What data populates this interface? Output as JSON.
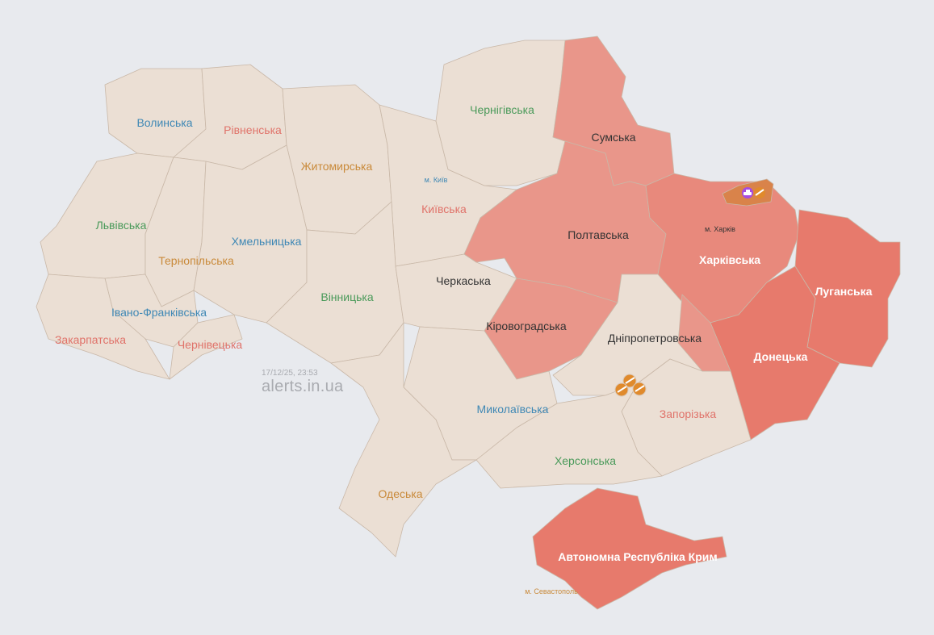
{
  "colors": {
    "background": "#e8eaee",
    "no_alert": "#ebdfd4",
    "alert_light": "#e9968a",
    "alert_medium": "#e8897c",
    "alert_strong": "#e77a6c",
    "threat_artillery": "#e08a2c",
    "threat_tank": "#a64ce0"
  },
  "regions": [
    {
      "name": "Волинська",
      "alert": false
    },
    {
      "name": "Рівненська",
      "alert": false
    },
    {
      "name": "Житомирська",
      "alert": false
    },
    {
      "name": "Київська",
      "alert": false
    },
    {
      "name": "Чернігівська",
      "alert": false
    },
    {
      "name": "Сумська",
      "alert": true
    },
    {
      "name": "Львівська",
      "alert": false
    },
    {
      "name": "Тернопільська",
      "alert": false
    },
    {
      "name": "Хмельницька",
      "alert": false
    },
    {
      "name": "Івано-Франківська",
      "alert": false
    },
    {
      "name": "Закарпатська",
      "alert": false
    },
    {
      "name": "Чернівецька",
      "alert": false
    },
    {
      "name": "Вінницька",
      "alert": false
    },
    {
      "name": "Черкаська",
      "alert": false
    },
    {
      "name": "Полтавська",
      "alert": true
    },
    {
      "name": "Харківська",
      "alert": true
    },
    {
      "name": "Луганська",
      "alert": true
    },
    {
      "name": "Донецька",
      "alert": true
    },
    {
      "name": "Кіровоградська",
      "alert": true
    },
    {
      "name": "Дніпропетровська",
      "alert": false
    },
    {
      "name": "Запорізька",
      "alert": false
    },
    {
      "name": "Херсонська",
      "alert": false
    },
    {
      "name": "Миколаївська",
      "alert": false
    },
    {
      "name": "Одеська",
      "alert": false
    },
    {
      "name": "Автономна Республіка Крим",
      "alert": true
    }
  ],
  "cities": {
    "kyiv": "м. Київ",
    "kharkiv": "м. Харків",
    "sevastopol": "м. Севастополь"
  },
  "threat_icons": [
    "tank-icon",
    "artillery-icon"
  ],
  "footer": {
    "timestamp": "17/12/25, 23:53",
    "site": "alerts.in.ua"
  }
}
